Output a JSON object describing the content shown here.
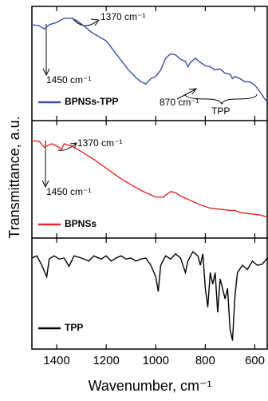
{
  "chart_data": [
    {
      "type": "line",
      "ylabel": "Transmittance, a.u.",
      "xlim": [
        1500,
        550
      ],
      "ylim": [
        0,
        100
      ],
      "annotations": [
        "1370 cm⁻¹",
        "1450 cm⁻¹",
        "870 cm⁻¹",
        "TPP"
      ],
      "series": [
        {
          "name": "BPNSs-TPP",
          "color": "#3b4fa8",
          "x": [
            1500,
            1470,
            1450,
            1430,
            1400,
            1370,
            1340,
            1320,
            1290,
            1260,
            1230,
            1200,
            1170,
            1140,
            1110,
            1080,
            1060,
            1040,
            1020,
            1000,
            980,
            960,
            940,
            920,
            900,
            880,
            870,
            860,
            840,
            820,
            800,
            780,
            760,
            740,
            720,
            700,
            690,
            680,
            660,
            640,
            620,
            600,
            580,
            560,
            550
          ],
          "values": [
            86,
            85,
            82,
            86,
            88,
            92,
            92,
            90,
            85,
            79,
            75,
            71,
            62,
            53,
            44,
            37,
            33,
            31,
            36,
            38,
            44,
            55,
            59,
            58,
            54,
            52,
            47,
            51,
            55,
            51,
            48,
            47,
            44,
            45,
            41,
            40,
            36,
            38,
            36,
            33,
            33,
            30,
            24,
            17,
            15
          ]
        }
      ]
    },
    {
      "type": "line",
      "xlim": [
        1500,
        550
      ],
      "ylim": [
        0,
        100
      ],
      "annotations": [
        "1370 cm⁻¹",
        "1450 cm⁻¹"
      ],
      "series": [
        {
          "name": "BPNSs",
          "color": "#e8262a",
          "x": [
            1500,
            1470,
            1450,
            1420,
            1400,
            1380,
            1370,
            1340,
            1300,
            1250,
            1200,
            1150,
            1100,
            1050,
            1000,
            970,
            940,
            920,
            900,
            860,
            820,
            780,
            740,
            700,
            680,
            660,
            620,
            580,
            550
          ],
          "values": [
            85,
            84,
            79,
            82,
            80,
            77,
            82,
            80,
            75,
            68,
            60,
            52,
            45,
            39,
            34,
            34,
            39,
            38,
            35,
            31,
            27,
            24,
            23,
            22,
            22,
            20,
            19,
            18,
            16
          ]
        }
      ]
    },
    {
      "type": "line",
      "xlabel": "Wavenumber, cm⁻¹",
      "xlim": [
        1500,
        550
      ],
      "ylim": [
        0,
        100
      ],
      "xticks": [
        1400,
        1200,
        1000,
        800,
        600
      ],
      "series": [
        {
          "name": "TPP",
          "color": "#000000",
          "x": [
            1500,
            1480,
            1460,
            1440,
            1430,
            1410,
            1390,
            1370,
            1350,
            1330,
            1300,
            1270,
            1250,
            1220,
            1200,
            1180,
            1160,
            1140,
            1120,
            1100,
            1080,
            1060,
            1040,
            1020,
            1000,
            990,
            980,
            960,
            940,
            920,
            900,
            880,
            870,
            850,
            830,
            820,
            810,
            800,
            790,
            780,
            770,
            760,
            750,
            740,
            720,
            710,
            700,
            690,
            680,
            670,
            650,
            630,
            610,
            590,
            570,
            550
          ],
          "values": [
            84,
            86,
            77,
            66,
            83,
            86,
            83,
            84,
            76,
            86,
            84,
            81,
            86,
            83,
            86,
            81,
            84,
            86,
            83,
            84,
            81,
            83,
            84,
            77,
            66,
            52,
            77,
            86,
            83,
            88,
            84,
            70,
            81,
            90,
            86,
            77,
            88,
            55,
            37,
            70,
            59,
            70,
            32,
            64,
            45,
            55,
            16,
            5,
            48,
            70,
            77,
            73,
            81,
            77,
            78,
            84
          ]
        }
      ]
    }
  ]
}
